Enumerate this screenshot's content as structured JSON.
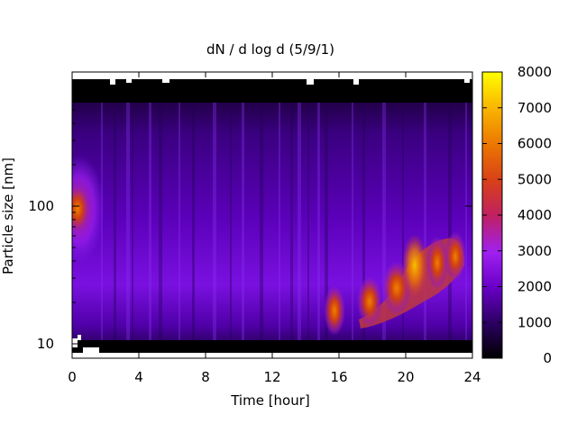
{
  "chart_data": {
    "type": "heatmap",
    "title": "dN / d log d (5/9/1)",
    "xlabel": "Time [hour]",
    "ylabel": "Particle size [nm]",
    "xlim": [
      0,
      24
    ],
    "x_ticks": [
      "0",
      "4",
      "8",
      "12",
      "16",
      "20",
      "24"
    ],
    "y_scale": "log",
    "ylim_nm": [
      7.5,
      850
    ],
    "y_ticks": [
      "10",
      "100"
    ],
    "colorbar": {
      "range": [
        0,
        8000
      ],
      "ticks": [
        "0",
        "1000",
        "2000",
        "3000",
        "4000",
        "5000",
        "6000",
        "7000",
        "8000"
      ],
      "colormap": "gnuplot (black-purple-red-yellow)"
    },
    "grid": false,
    "features": [
      {
        "time_h": 0.3,
        "diameter_nm": 95,
        "value": 4500
      },
      {
        "time_h": 15.8,
        "diameter_nm": 15,
        "value": 5000
      },
      {
        "time_h": 18.0,
        "diameter_nm": 22,
        "value": 5500
      },
      {
        "time_h": 20.5,
        "diameter_nm": 30,
        "value": 6500
      },
      {
        "time_h": 22.8,
        "diameter_nm": 40,
        "value": 6000
      }
    ]
  }
}
